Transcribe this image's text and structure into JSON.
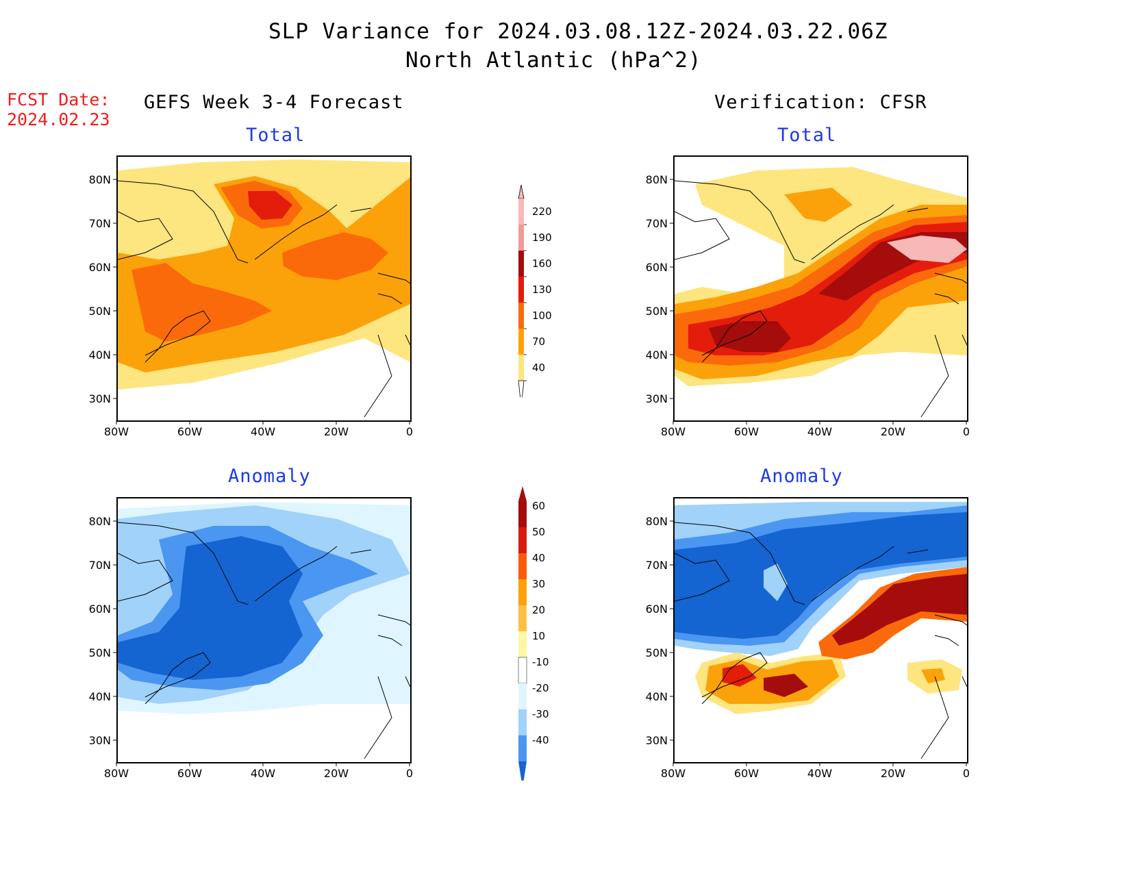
{
  "header": {
    "title_line1": "SLP Variance for 2024.03.08.12Z-2024.03.22.06Z",
    "title_line2": "North Atlantic (hPa^2)",
    "fcst_label": "FCST Date:",
    "fcst_date": "2024.02.23"
  },
  "columns": {
    "left": "GEFS Week 3-4 Forecast",
    "right": "Verification: CFSR"
  },
  "panels": {
    "fc_total": "Total",
    "ver_total": "Total",
    "fc_anom": "Anomaly",
    "ver_anom": "Anomaly"
  },
  "axes": {
    "lat_labels": [
      "80N",
      "70N",
      "60N",
      "50N",
      "40N",
      "30N"
    ],
    "lon_labels": [
      "80W",
      "60W",
      "40W",
      "20W",
      "0"
    ]
  },
  "colorbars": {
    "total": {
      "levels": [
        "220",
        "190",
        "160",
        "130",
        "100",
        "70",
        "40"
      ],
      "colors": [
        "#f7b8b8",
        "#f29999",
        "#a50c0c",
        "#e41c0c",
        "#fb6a0a",
        "#fba20a",
        "#fde580",
        "#ffffff"
      ]
    },
    "anomaly": {
      "levels": [
        "60",
        "50",
        "40",
        "30",
        "20",
        "10",
        "-10",
        "-20",
        "-30",
        "-40"
      ],
      "colors": [
        "#a50c0c",
        "#d71c0c",
        "#fb5a0a",
        "#fba20a",
        "#fdc046",
        "#fff6a6",
        "#ffffff",
        "#dff5ff",
        "#a0d2fa",
        "#4a96f0",
        "#1464d2"
      ]
    }
  }
}
